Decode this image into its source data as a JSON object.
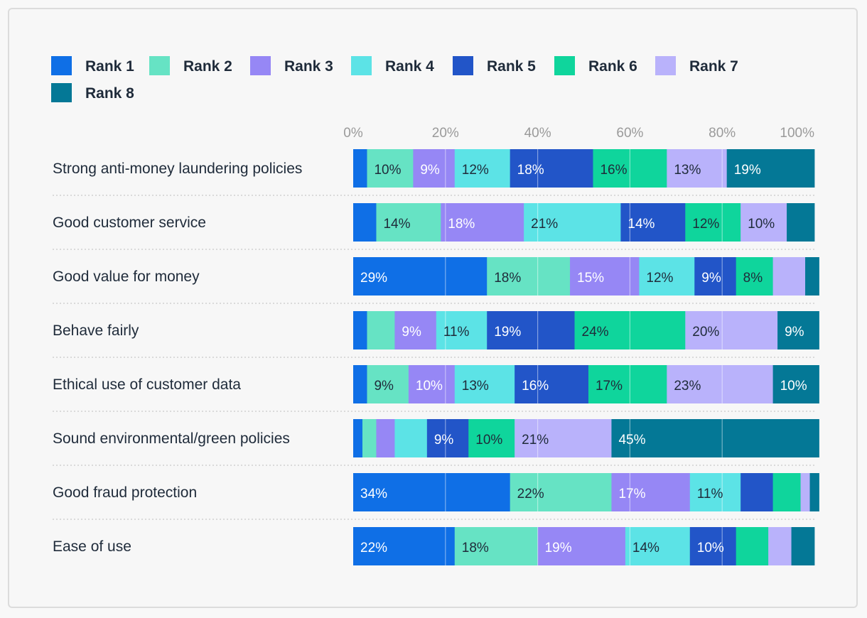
{
  "chart_data": {
    "type": "bar",
    "orientation": "horizontal",
    "stacked": true,
    "title": "",
    "xlabel": "",
    "ylabel": "",
    "xlim": [
      0,
      100
    ],
    "xticks": [
      "0%",
      "20%",
      "40%",
      "60%",
      "80%",
      "100%"
    ],
    "legend_position": "top-left",
    "categories": [
      "Strong anti-money laundering policies",
      "Good customer service",
      "Good value for money",
      "Behave fairly",
      "Ethical use of customer data",
      "Sound environmental/green policies",
      "Good fraud protection",
      "Ease of use"
    ],
    "series": [
      {
        "name": "Rank 1",
        "color": "#0f6fe6",
        "label_color": "#ffffff",
        "values": [
          3,
          5,
          29,
          3,
          3,
          2,
          34,
          22
        ],
        "labels": [
          "",
          "",
          "29%",
          "",
          "",
          "",
          "34%",
          "22%"
        ]
      },
      {
        "name": "Rank 2",
        "color": "#66e3c4",
        "label_color": "#1f2b3a",
        "values": [
          10,
          14,
          18,
          6,
          9,
          3,
          22,
          18
        ],
        "labels": [
          "10%",
          "14%",
          "18%",
          "",
          "9%",
          "",
          "22%",
          "18%"
        ]
      },
      {
        "name": "Rank 3",
        "color": "#9687f5",
        "label_color": "#ffffff",
        "values": [
          9,
          18,
          15,
          9,
          10,
          4,
          17,
          19
        ],
        "labels": [
          "9%",
          "18%",
          "15%",
          "9%",
          "10%",
          "",
          "17%",
          "19%"
        ]
      },
      {
        "name": "Rank 4",
        "color": "#5ce3e6",
        "label_color": "#1f2b3a",
        "values": [
          12,
          21,
          12,
          11,
          13,
          7,
          11,
          14
        ],
        "labels": [
          "12%",
          "21%",
          "12%",
          "11%",
          "13%",
          "",
          "11%",
          "14%"
        ]
      },
      {
        "name": "Rank 5",
        "color": "#2255c8",
        "label_color": "#ffffff",
        "values": [
          18,
          14,
          9,
          19,
          16,
          9,
          7,
          10
        ],
        "labels": [
          "18%",
          "14%",
          "9%",
          "19%",
          "16%",
          "9%",
          "",
          "10%"
        ]
      },
      {
        "name": "Rank 6",
        "color": "#0fd59c",
        "label_color": "#1f2b3a",
        "values": [
          16,
          12,
          8,
          24,
          17,
          10,
          6,
          7
        ],
        "labels": [
          "16%",
          "12%",
          "8%",
          "24%",
          "17%",
          "10%",
          "",
          ""
        ]
      },
      {
        "name": "Rank 7",
        "color": "#b9b2fb",
        "label_color": "#1f2b3a",
        "values": [
          13,
          10,
          7,
          20,
          23,
          21,
          2,
          5
        ],
        "labels": [
          "13%",
          "10%",
          "",
          "20%",
          "23%",
          "21%",
          "",
          ""
        ]
      },
      {
        "name": "Rank 8",
        "color": "#047896",
        "label_color": "#ffffff",
        "values": [
          19,
          6,
          3,
          9,
          10,
          45,
          2,
          5
        ],
        "labels": [
          "19%",
          "",
          "",
          "9%",
          "10%",
          "45%",
          "",
          ""
        ]
      }
    ]
  }
}
